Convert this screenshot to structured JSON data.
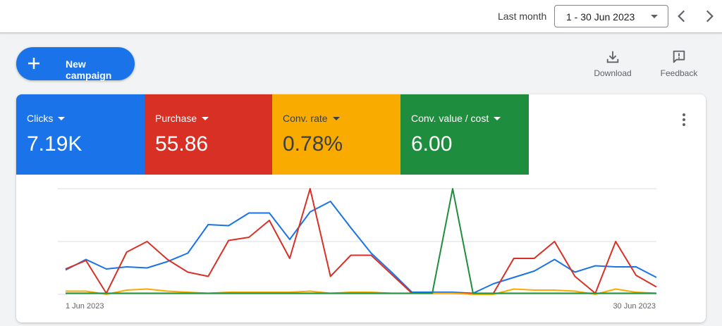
{
  "header": {
    "range_label": "Last month",
    "date_range": "1 - 30 Jun 2023"
  },
  "toolbar": {
    "new_campaign_label": "New campaign",
    "download_label": "Download",
    "feedback_label": "Feedback"
  },
  "metrics": [
    {
      "name": "Clicks",
      "value": "7.19K",
      "color": "#1a73e8"
    },
    {
      "name": "Purchase",
      "value": "55.86",
      "color": "#d93025"
    },
    {
      "name": "Conv. rate",
      "value": "0.78%",
      "color": "#f9ab00"
    },
    {
      "name": "Conv. value / cost",
      "value": "6.00",
      "color": "#1e8e3e"
    }
  ],
  "icons": {
    "download": "download-icon",
    "feedback": "feedback-icon",
    "more": "more-vert-icon",
    "prev": "chevron-left-icon",
    "next": "chevron-right-icon",
    "plus": "plus-icon"
  },
  "chart_data": {
    "type": "line",
    "x": [
      "1 Jun 2023",
      "2 Jun 2023",
      "3 Jun 2023",
      "4 Jun 2023",
      "5 Jun 2023",
      "6 Jun 2023",
      "7 Jun 2023",
      "8 Jun 2023",
      "9 Jun 2023",
      "10 Jun 2023",
      "11 Jun 2023",
      "12 Jun 2023",
      "13 Jun 2023",
      "14 Jun 2023",
      "15 Jun 2023",
      "16 Jun 2023",
      "17 Jun 2023",
      "18 Jun 2023",
      "19 Jun 2023",
      "20 Jun 2023",
      "21 Jun 2023",
      "22 Jun 2023",
      "23 Jun 2023",
      "24 Jun 2023",
      "25 Jun 2023",
      "26 Jun 2023",
      "27 Jun 2023",
      "28 Jun 2023",
      "29 Jun 2023",
      "30 Jun 2023"
    ],
    "tick_labels": [
      "1 Jun 2023",
      "30 Jun 2023"
    ],
    "grid": true,
    "ylim": [
      0,
      1
    ],
    "series": [
      {
        "color": "#1a73e8",
        "values": [
          0.23,
          0.33,
          0.24,
          0.26,
          0.25,
          0.31,
          0.39,
          0.66,
          0.65,
          0.77,
          0.77,
          0.52,
          0.78,
          0.88,
          0.63,
          0.39,
          0.21,
          0.02,
          0.02,
          0.02,
          0.01,
          0.1,
          0.16,
          0.22,
          0.33,
          0.21,
          0.27,
          0.26,
          0.26,
          0.16
        ]
      },
      {
        "color": "#d93025",
        "values": [
          0.24,
          0.32,
          0.01,
          0.4,
          0.5,
          0.33,
          0.21,
          0.17,
          0.51,
          0.54,
          0.7,
          0.34,
          1.0,
          0.17,
          0.37,
          0.37,
          0.19,
          0.01,
          0.01,
          0.01,
          0.01,
          0.01,
          0.34,
          0.34,
          0.5,
          0.17,
          0.01,
          0.5,
          0.18,
          0.07
        ]
      },
      {
        "color": "#f9ab00",
        "values": [
          0.03,
          0.03,
          0.0,
          0.04,
          0.05,
          0.03,
          0.02,
          0.01,
          0.02,
          0.02,
          0.02,
          0.02,
          0.03,
          0.01,
          0.02,
          0.02,
          0.01,
          0.01,
          0.01,
          0.01,
          0.0,
          0.0,
          0.05,
          0.04,
          0.04,
          0.03,
          0.0,
          0.05,
          0.02,
          0.01
        ]
      },
      {
        "color": "#1e8e3e",
        "values": [
          0.01,
          0.01,
          0.01,
          0.01,
          0.01,
          0.01,
          0.01,
          0.01,
          0.01,
          0.01,
          0.01,
          0.01,
          0.01,
          0.01,
          0.01,
          0.01,
          0.01,
          0.01,
          0.01,
          1.0,
          0.01,
          0.01,
          0.01,
          0.01,
          0.01,
          0.01,
          0.01,
          0.01,
          0.01,
          0.01
        ]
      }
    ]
  }
}
